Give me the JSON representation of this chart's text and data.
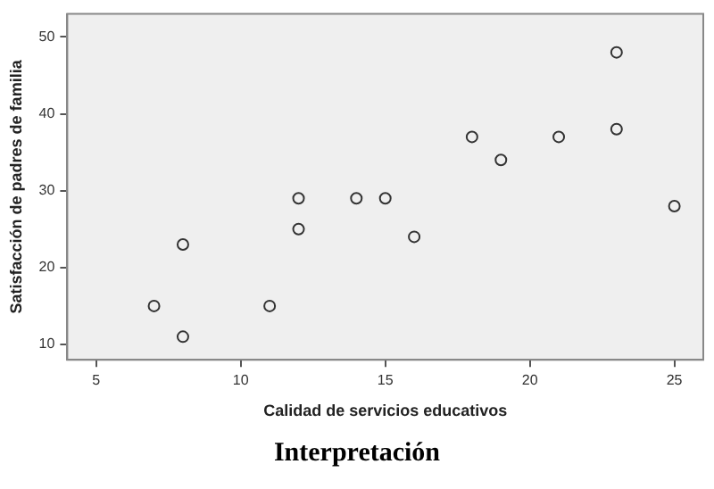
{
  "chart_data": {
    "type": "scatter",
    "xlabel": "Calidad de servicios educativos",
    "ylabel": "Satisfacción de padres de familia",
    "x": [
      7,
      8,
      8,
      11,
      12,
      12,
      14,
      15,
      16,
      18,
      19,
      21,
      23,
      23,
      25
    ],
    "values": [
      15,
      11,
      23,
      15,
      25,
      29,
      29,
      29,
      24,
      37,
      34,
      37,
      38,
      48,
      28
    ],
    "color": "#333333",
    "marker": "circle",
    "grid": false,
    "legend": false,
    "xlim": [
      4,
      26
    ],
    "xticks": [
      5,
      10,
      15,
      20,
      25
    ],
    "ylim": [
      8,
      53
    ],
    "yticks": [
      10,
      20,
      30,
      40,
      50
    ],
    "annotations": [
      "Interpretación"
    ]
  }
}
